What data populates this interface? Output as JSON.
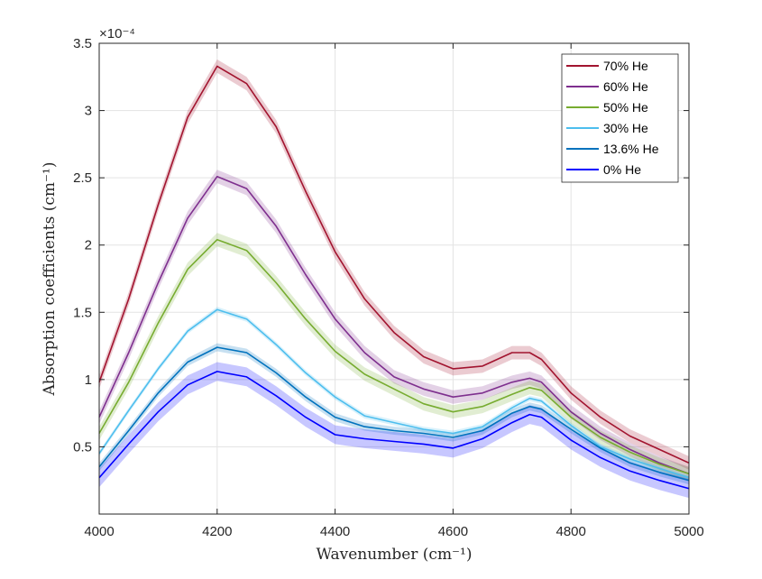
{
  "chart_data": {
    "type": "line",
    "title": "",
    "xlabel": "Wavenumber (cm⁻¹)",
    "ylabel": "Absorption coefficients (cm⁻¹)",
    "y_multiplier_label": "×10⁻⁴",
    "xlim": [
      4000,
      5000
    ],
    "ylim": [
      0,
      3.5
    ],
    "y_scale_factor": 0.0001,
    "x_ticks": [
      4000,
      4200,
      4400,
      4600,
      4800,
      5000
    ],
    "y_ticks": [
      0.5,
      1,
      1.5,
      2,
      2.5,
      3,
      3.5
    ],
    "x_tick_labels": [
      "4000",
      "4200",
      "4400",
      "4600",
      "4800",
      "5000"
    ],
    "y_tick_labels": [
      "0.5",
      "1",
      "1.5",
      "2",
      "2.5",
      "3",
      "3.5"
    ],
    "grid": true,
    "legend_position": "top-right",
    "x": [
      4000,
      4050,
      4100,
      4150,
      4200,
      4250,
      4300,
      4350,
      4400,
      4450,
      4500,
      4550,
      4600,
      4650,
      4700,
      4730,
      4750,
      4800,
      4850,
      4900,
      4950,
      5000
    ],
    "series": [
      {
        "name": "70% He",
        "color": "#a2142f",
        "band": 0.05,
        "values": [
          0.98,
          1.6,
          2.3,
          2.95,
          3.33,
          3.2,
          2.88,
          2.4,
          1.95,
          1.6,
          1.35,
          1.17,
          1.08,
          1.1,
          1.2,
          1.2,
          1.15,
          0.9,
          0.72,
          0.58,
          0.48,
          0.38
        ]
      },
      {
        "name": "60% He",
        "color": "#7e2f8e",
        "band": 0.05,
        "values": [
          0.72,
          1.2,
          1.72,
          2.2,
          2.51,
          2.42,
          2.14,
          1.78,
          1.45,
          1.2,
          1.02,
          0.93,
          0.87,
          0.9,
          0.98,
          1.01,
          0.98,
          0.76,
          0.6,
          0.48,
          0.38,
          0.3
        ]
      },
      {
        "name": "50% He",
        "color": "#77ac30",
        "band": 0.05,
        "values": [
          0.6,
          0.98,
          1.42,
          1.82,
          2.04,
          1.96,
          1.72,
          1.45,
          1.21,
          1.04,
          0.93,
          0.82,
          0.76,
          0.8,
          0.89,
          0.94,
          0.92,
          0.72,
          0.57,
          0.46,
          0.37,
          0.3
        ]
      },
      {
        "name": "30% He",
        "color": "#4dbeee",
        "band": 0.02,
        "values": [
          0.45,
          0.77,
          1.08,
          1.36,
          1.52,
          1.45,
          1.26,
          1.05,
          0.87,
          0.73,
          0.68,
          0.63,
          0.6,
          0.65,
          0.79,
          0.86,
          0.84,
          0.66,
          0.5,
          0.41,
          0.34,
          0.27
        ]
      },
      {
        "name": "13.6% He",
        "color": "#0072bd",
        "band": 0.03,
        "values": [
          0.35,
          0.62,
          0.9,
          1.13,
          1.24,
          1.2,
          1.05,
          0.87,
          0.72,
          0.65,
          0.62,
          0.6,
          0.57,
          0.62,
          0.75,
          0.8,
          0.78,
          0.63,
          0.49,
          0.38,
          0.31,
          0.25
        ]
      },
      {
        "name": "0% He",
        "color": "#0000ff",
        "band": 0.07,
        "values": [
          0.27,
          0.52,
          0.76,
          0.96,
          1.06,
          1.02,
          0.88,
          0.72,
          0.59,
          0.56,
          0.54,
          0.52,
          0.49,
          0.56,
          0.68,
          0.74,
          0.72,
          0.55,
          0.42,
          0.32,
          0.25,
          0.19
        ]
      }
    ]
  }
}
